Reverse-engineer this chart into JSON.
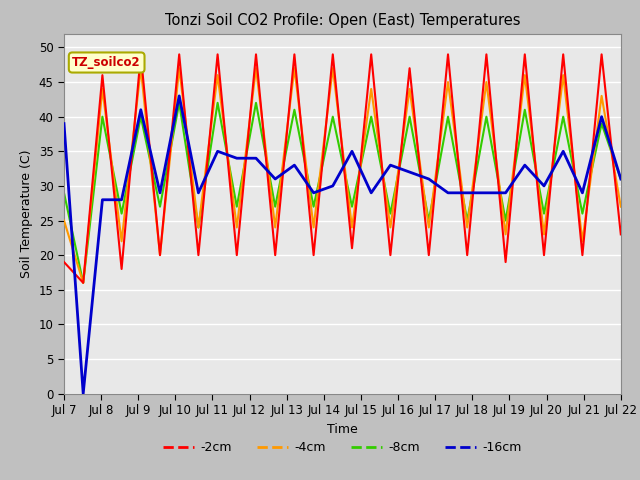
{
  "title": "Tonzi Soil CO2 Profile: Open (East) Temperatures",
  "xlabel": "Time",
  "ylabel": "Soil Temperature (C)",
  "annotation": "TZ_soilco2",
  "colors": {
    "-2cm": "#ff0000",
    "-4cm": "#ff9900",
    "-8cm": "#33cc00",
    "-16cm": "#0000cc"
  },
  "tick_labels": [
    "Jul 7",
    "Jul 8",
    "Jul 9",
    "Jul 10",
    "Jul 11",
    "Jul 12",
    "Jul 13",
    "Jul 14",
    "Jul 15",
    "Jul 16",
    "Jul 17",
    "Jul 18",
    "Jul 19",
    "Jul 20",
    "Jul 21",
    "Jul 22"
  ],
  "series_2cm": [
    19,
    16,
    46,
    18,
    49,
    20,
    49,
    20,
    49,
    20,
    49,
    20,
    49,
    20,
    49,
    21,
    49,
    20,
    47,
    20,
    49,
    20,
    49,
    19,
    49,
    20,
    49,
    20,
    49,
    23
  ],
  "series_4cm": [
    25,
    16,
    44,
    22,
    47,
    20,
    47,
    24,
    46,
    24,
    47,
    24,
    47,
    24,
    47,
    24,
    44,
    24,
    44,
    24,
    45,
    24,
    45,
    23,
    46,
    23,
    46,
    22,
    43,
    27
  ],
  "series_8cm": [
    29,
    16,
    40,
    26,
    40,
    27,
    42,
    24,
    42,
    27,
    42,
    27,
    41,
    27,
    40,
    27,
    40,
    26,
    40,
    25,
    40,
    25,
    40,
    25,
    41,
    26,
    40,
    26,
    39,
    31
  ],
  "series_16cm": [
    39,
    0,
    28,
    28,
    41,
    29,
    43,
    29,
    35,
    34,
    34,
    31,
    33,
    29,
    30,
    35,
    29,
    33,
    32,
    31,
    29,
    29,
    29,
    29,
    33,
    30,
    35,
    29,
    40,
    31
  ]
}
